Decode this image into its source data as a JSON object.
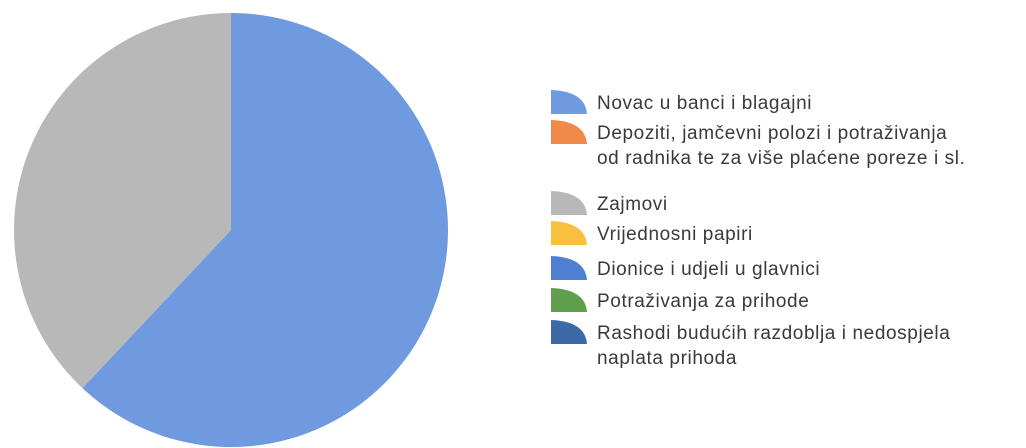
{
  "chart_data": {
    "type": "pie",
    "title": "",
    "legend_position": "right",
    "start_angle_deg": 0,
    "direction": "clockwise",
    "series": [
      {
        "name": "Novac u banci i blagajni",
        "name_lines": [
          "Novac u banci i blagajni"
        ],
        "value": 62.0,
        "color": "#6f9ae0"
      },
      {
        "name": "Depoziti, jamčevni polozi i potraživanja od radnika te za više plaćene poreze i sl.",
        "name_lines": [
          "Depoziti, jamčevni polozi i potraživanja",
          "od radnika te za više plaćene poreze i sl."
        ],
        "value": 0,
        "color": "#f08a4b"
      },
      {
        "name": "Zajmovi",
        "name_lines": [
          "Zajmovi"
        ],
        "value": 38.0,
        "color": "#b8b8b8"
      },
      {
        "name": "Vrijednosni papiri",
        "name_lines": [
          "Vrijednosni papiri"
        ],
        "value": 0,
        "color": "#f7c040"
      },
      {
        "name": "Dionice i udjeli u glavnici",
        "name_lines": [
          "Dionice i udjeli u glavnici"
        ],
        "value": 0,
        "color": "#4f7fd0"
      },
      {
        "name": "Potraživanja za prihode",
        "name_lines": [
          "Potraživanja za prihode"
        ],
        "value": 0,
        "color": "#5f9e4a"
      },
      {
        "name": "Rashodi budućih razdoblja i nedospjela naplata prihoda",
        "name_lines": [
          "Rashodi budućih razdoblja i nedospjela",
          "naplata prihoda"
        ],
        "value": 0,
        "color": "#3b6aa6"
      }
    ]
  }
}
